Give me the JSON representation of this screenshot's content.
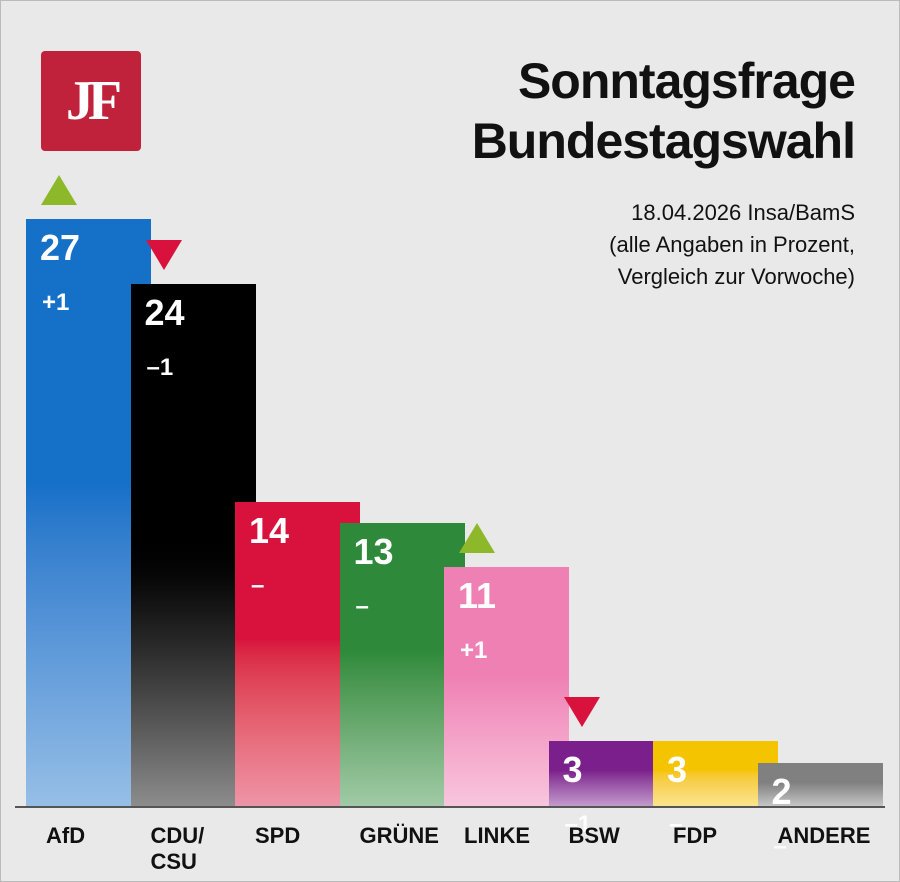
{
  "chart_data": {
    "type": "bar",
    "logo": "JF",
    "title": [
      "Sonntagsfrage",
      "Bundestagswahl"
    ],
    "subtitle": [
      "18.04.2026 Insa/BamS",
      "(alle Angaben in Prozent,",
      "Vergleich zur Vorwoche)"
    ],
    "categories": [
      "AfD",
      "CDU/\nCSU",
      "SPD",
      "GRÜNE",
      "LINKE",
      "BSW",
      "FDP",
      "ANDERE"
    ],
    "values": [
      27,
      24,
      14,
      13,
      11,
      3,
      3,
      2
    ],
    "changes": [
      1,
      -1,
      0,
      0,
      1,
      -1,
      0,
      0
    ],
    "change_labels": [
      "+1",
      "–1",
      "–",
      "–",
      "+1",
      "–1",
      "–",
      "–"
    ],
    "colors": [
      "#1570c8",
      "#000000",
      "#d8123c",
      "#2e8a3a",
      "#ee80b4",
      "#7b1f8c",
      "#f5c400",
      "#808080"
    ],
    "up_color": "#8cb82a",
    "down_color": "#d8123c"
  }
}
